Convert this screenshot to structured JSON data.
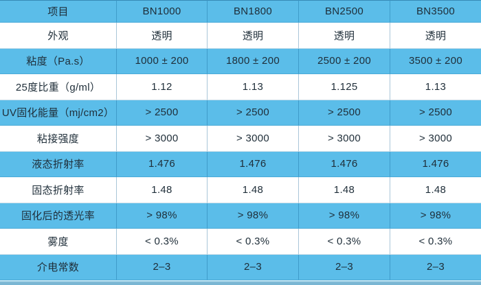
{
  "table": {
    "columns": [
      "项目",
      "BN1000",
      "BN1800",
      "BN2500",
      "BN3500"
    ],
    "rows": [
      {
        "label": "外观",
        "values": [
          "透明",
          "透明",
          "透明",
          "透明"
        ]
      },
      {
        "label": "粘度（Pa.s）",
        "values": [
          "1000 ± 200",
          "1800 ± 200",
          "2500 ± 200",
          "3500 ± 200"
        ]
      },
      {
        "label": "25度比重（g/ml）",
        "values": [
          "1.12",
          "1.13",
          "1.125",
          "1.13"
        ]
      },
      {
        "label": "UV固化能量（mj/cm2）",
        "values": [
          "> 2500",
          "> 2500",
          "> 2500",
          "> 2500"
        ]
      },
      {
        "label": "粘接强度",
        "values": [
          "> 3000",
          "> 3000",
          "> 3000",
          "> 3000"
        ]
      },
      {
        "label": "液态折射率",
        "values": [
          "1.476",
          "1.476",
          "1.476",
          "1.476"
        ]
      },
      {
        "label": "固态折射率",
        "values": [
          "1.48",
          "1.48",
          "1.48",
          "1.48"
        ]
      },
      {
        "label": "固化后的透光率",
        "values": [
          "> 98%",
          "> 98%",
          "> 98%",
          "> 98%"
        ]
      },
      {
        "label": "雾度",
        "values": [
          "< 0.3%",
          "< 0.3%",
          "< 0.3%",
          "< 0.3%"
        ]
      },
      {
        "label": "介电常数",
        "values": [
          "2–3",
          "2–3",
          "2–3",
          "2–3"
        ]
      }
    ],
    "colors": {
      "row_blue": "#5BBDE9",
      "row_white": "#FFFFFF",
      "text": "#1E2D38",
      "grid_v": "rgba(13,95,145,0.35)",
      "grid_h": "rgba(13,95,145,0.20)",
      "top_edge": "rgba(10,75,120,0.45)",
      "bottom_line": "#C4E6F4",
      "bottom_band": "#7AB6D3"
    }
  }
}
